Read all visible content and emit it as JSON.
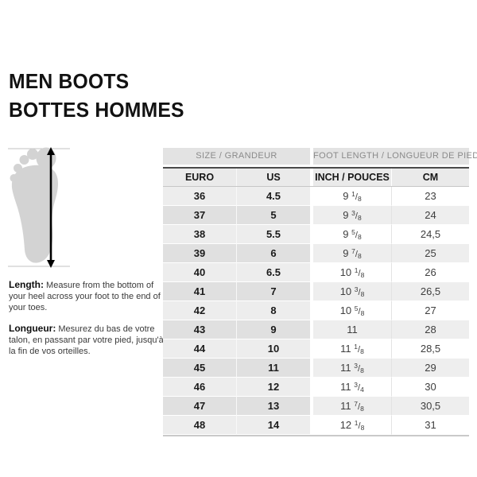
{
  "title": {
    "line1": "MEN BOOTS",
    "line2": "BOTTES HOMMES"
  },
  "instructions": {
    "length_label": "Length:",
    "length_text": " Measure from the bottom of your heel across your foot to the end of your toes.",
    "longueur_label": "Longueur:",
    "longueur_text": " Mesurez du bas de votre talon, en passant par votre pied, jusqu'à la fin de vos orteilles."
  },
  "illustration": {
    "icon": "foot-sole-with-measure-arrow"
  },
  "table": {
    "group_headers": [
      "SIZE / GRANDEUR",
      "FOOT LENGTH / LONGUEUR DE PIED"
    ],
    "column_headers": [
      "EURO",
      "US",
      "INCH / POUCES",
      "CM"
    ],
    "rows": [
      {
        "euro": "36",
        "us": "4.5",
        "inch_whole": "9",
        "inch_num": "1",
        "inch_den": "8",
        "cm": "23"
      },
      {
        "euro": "37",
        "us": "5",
        "inch_whole": "9",
        "inch_num": "3",
        "inch_den": "8",
        "cm": "24"
      },
      {
        "euro": "38",
        "us": "5.5",
        "inch_whole": "9",
        "inch_num": "5",
        "inch_den": "8",
        "cm": "24,5"
      },
      {
        "euro": "39",
        "us": "6",
        "inch_whole": "9",
        "inch_num": "7",
        "inch_den": "8",
        "cm": "25"
      },
      {
        "euro": "40",
        "us": "6.5",
        "inch_whole": "10",
        "inch_num": "1",
        "inch_den": "8",
        "cm": "26"
      },
      {
        "euro": "41",
        "us": "7",
        "inch_whole": "10",
        "inch_num": "3",
        "inch_den": "8",
        "cm": "26,5"
      },
      {
        "euro": "42",
        "us": "8",
        "inch_whole": "10",
        "inch_num": "5",
        "inch_den": "8",
        "cm": "27"
      },
      {
        "euro": "43",
        "us": "9",
        "inch_whole": "11",
        "inch_num": "",
        "inch_den": "",
        "cm": "28"
      },
      {
        "euro": "44",
        "us": "10",
        "inch_whole": "11",
        "inch_num": "1",
        "inch_den": "8",
        "cm": "28,5"
      },
      {
        "euro": "45",
        "us": "11",
        "inch_whole": "11",
        "inch_num": "3",
        "inch_den": "8",
        "cm": "29"
      },
      {
        "euro": "46",
        "us": "12",
        "inch_whole": "11",
        "inch_num": "3",
        "inch_den": "4",
        "cm": "30"
      },
      {
        "euro": "47",
        "us": "13",
        "inch_whole": "11",
        "inch_num": "7",
        "inch_den": "8",
        "cm": "30,5"
      },
      {
        "euro": "48",
        "us": "14",
        "inch_whole": "12",
        "inch_num": "1",
        "inch_den": "8",
        "cm": "31"
      }
    ]
  },
  "colors": {
    "group_header_bg": "#e3e3e3",
    "group_header_text": "#8a8a8a",
    "column_header_bg": "#eaeaea",
    "dark_rule": "#4b4b4b",
    "row_left_even": "#ededed",
    "row_left_odd": "#e0e0e0",
    "row_right_even": "#ffffff",
    "row_right_odd": "#eeeeee",
    "foot_fill": "#d3d3d3"
  }
}
